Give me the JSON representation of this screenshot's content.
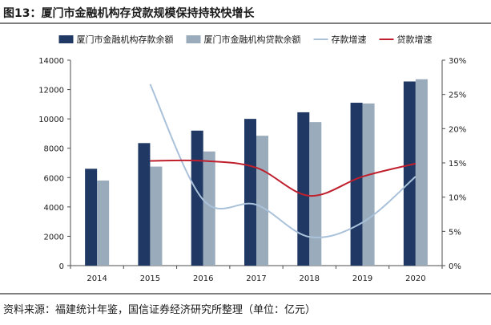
{
  "figure": {
    "title": "图13：厦门市金融机构存贷款规模保持持较快增长",
    "source": "资料来源：福建统计年鉴，国信证券经济研究所整理（单位：亿元）"
  },
  "colors": {
    "deposit_bar": "#1f3864",
    "loan_bar": "#9aabbb",
    "deposit_growth": "#a9c1d9",
    "loan_growth": "#c0202e",
    "axis": "#4d4d4d"
  },
  "chart_data": {
    "type": "bar",
    "categories": [
      "2014",
      "2015",
      "2016",
      "2017",
      "2018",
      "2019",
      "2020"
    ],
    "series": [
      {
        "name": "厦门市金融机构存款余额",
        "kind": "bar",
        "axis": "left",
        "values": [
          6600,
          8350,
          9200,
          10000,
          10450,
          11100,
          12550
        ]
      },
      {
        "name": "厦门市金融机构贷款余额",
        "kind": "bar",
        "axis": "left",
        "values": [
          5800,
          6750,
          7780,
          8850,
          9780,
          11050,
          12700
        ]
      },
      {
        "name": "存款增速",
        "kind": "line",
        "axis": "right",
        "values": [
          null,
          26.5,
          9.6,
          8.9,
          4.2,
          6.3,
          13.0
        ]
      },
      {
        "name": "贷款增速",
        "kind": "line",
        "axis": "right",
        "values": [
          null,
          15.3,
          15.3,
          14.3,
          10.2,
          13.0,
          14.9
        ]
      }
    ],
    "ylim": [
      0,
      14000
    ],
    "yticks": [
      "0",
      "2000",
      "4000",
      "6000",
      "8000",
      "10000",
      "12000",
      "14000"
    ],
    "y2lim": [
      0,
      30
    ],
    "y2ticks": [
      "0%",
      "5%",
      "10%",
      "15%",
      "20%",
      "25%",
      "30%"
    ],
    "xlabel": "",
    "ylabel": "",
    "y2label": "",
    "legend_position": "top",
    "grid": false
  }
}
